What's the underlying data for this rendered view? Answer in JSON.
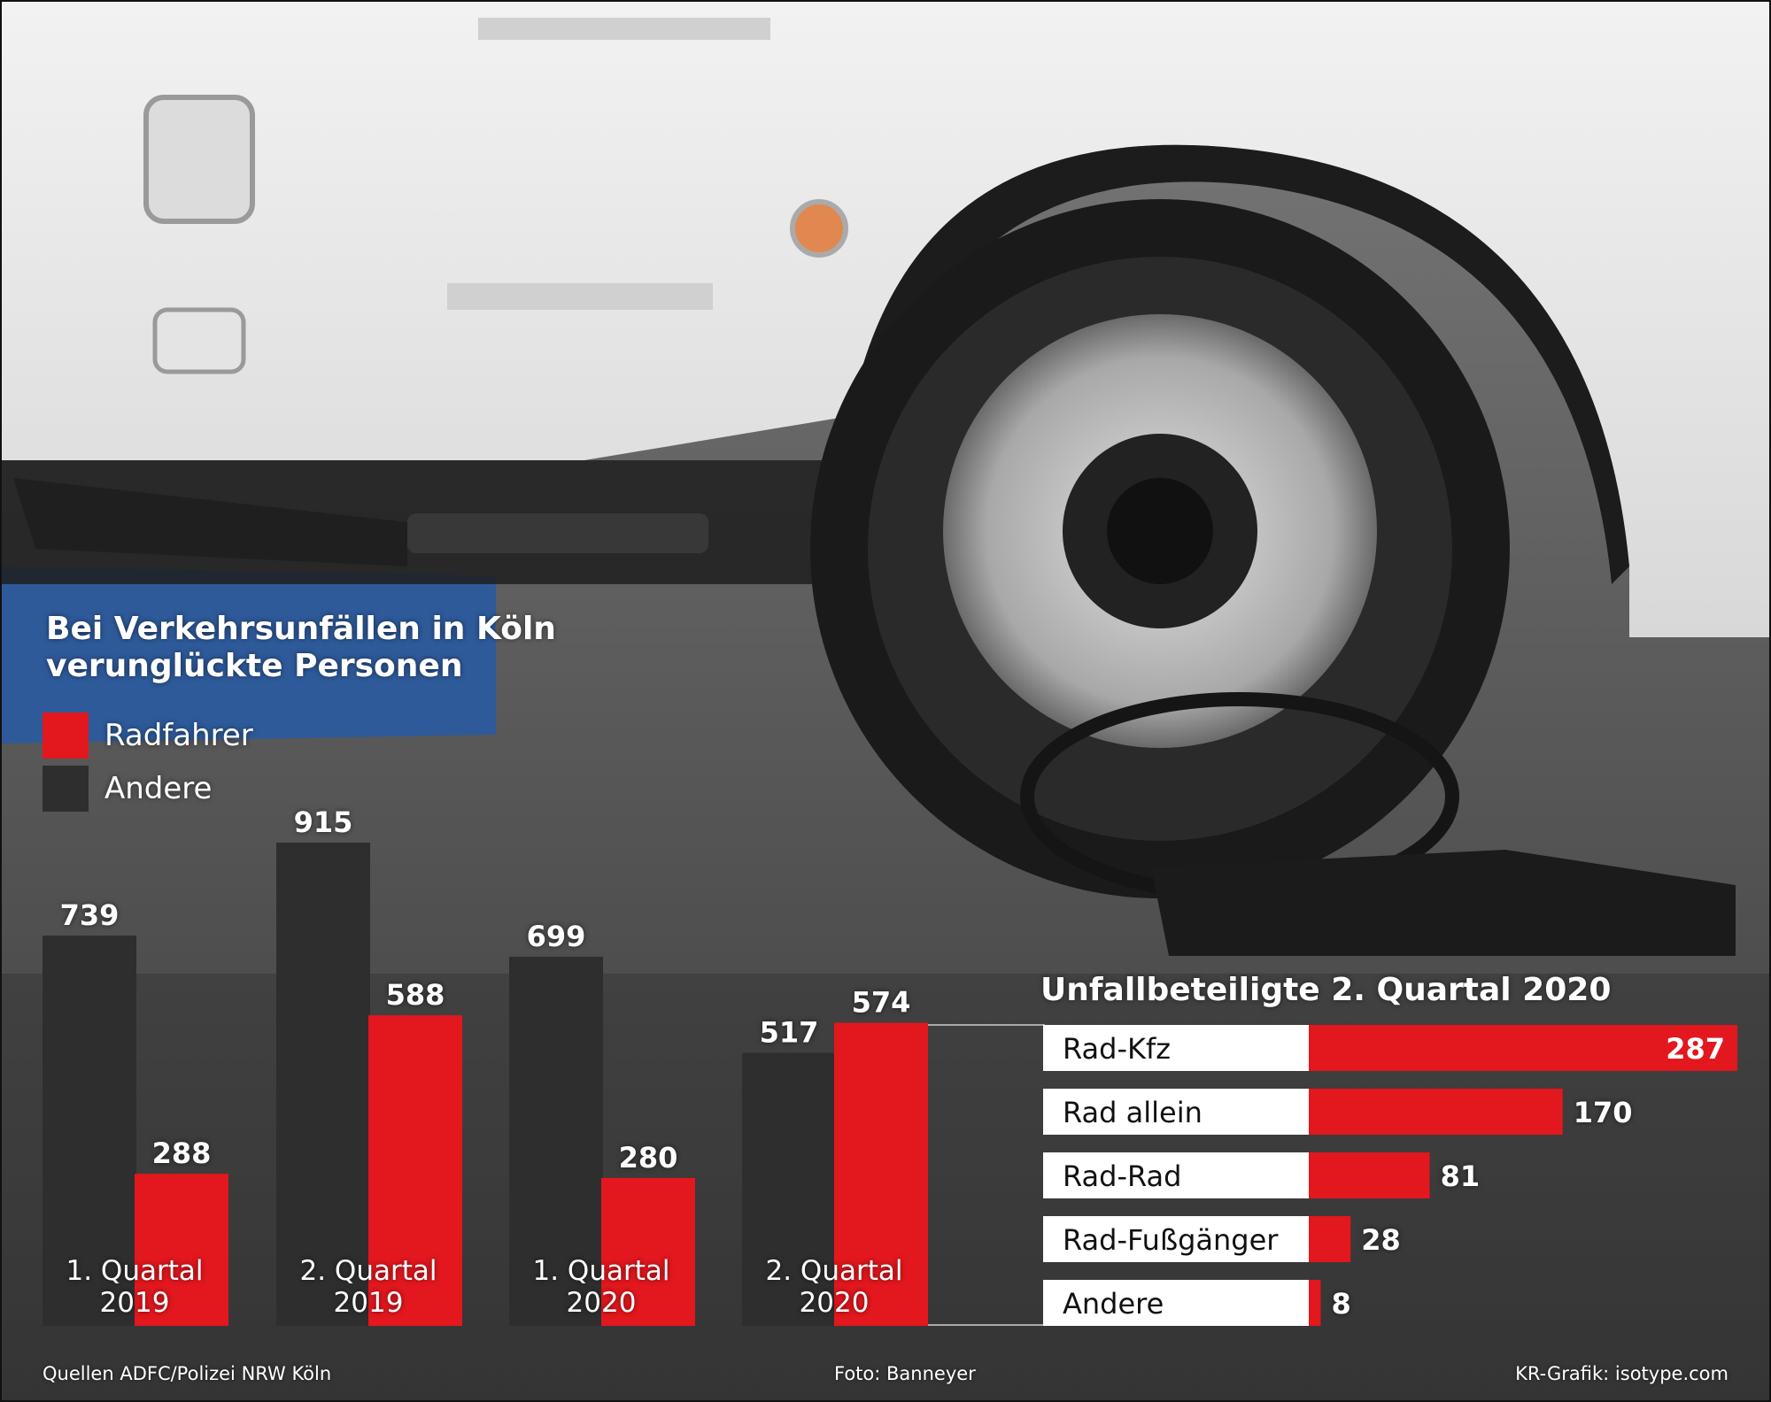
{
  "colors": {
    "radfahrer": "#e3171e",
    "andere": "#2e2e2e",
    "label_bg": "#ffffff"
  },
  "chart_data": [
    {
      "type": "bar",
      "title": "Bei Verkehrsunfällen in Köln verunglückte Personen",
      "categories": [
        [
          "1. Quartal",
          "2019"
        ],
        [
          "2. Quartal",
          "2019"
        ],
        [
          "1. Quartal",
          "2020"
        ],
        [
          "2. Quartal",
          "2020"
        ]
      ],
      "series": [
        {
          "name": "Andere",
          "color": "#2e2e2e",
          "values": [
            739,
            915,
            699,
            517
          ]
        },
        {
          "name": "Radfahrer",
          "color": "#e3171e",
          "values": [
            288,
            588,
            280,
            574
          ]
        }
      ],
      "legend": "top-left",
      "ylim": [
        0,
        915
      ],
      "grid": false
    },
    {
      "type": "bar",
      "orientation": "horizontal",
      "title": "Unfallbeteiligte 2. Quartal 2020",
      "categories": [
        "Rad-Kfz",
        "Rad allein",
        "Rad-Rad",
        "Rad-Fußgänger",
        "Andere"
      ],
      "values": [
        287,
        170,
        81,
        28,
        8
      ],
      "xlim": [
        0,
        287
      ],
      "color": "#e3171e",
      "grid": false
    }
  ],
  "footer": {
    "source": "Quellen ADFC/Polizei NRW Köln",
    "photo": "Foto: Banneyer",
    "credit": "KR-Grafik: isotype.com"
  }
}
